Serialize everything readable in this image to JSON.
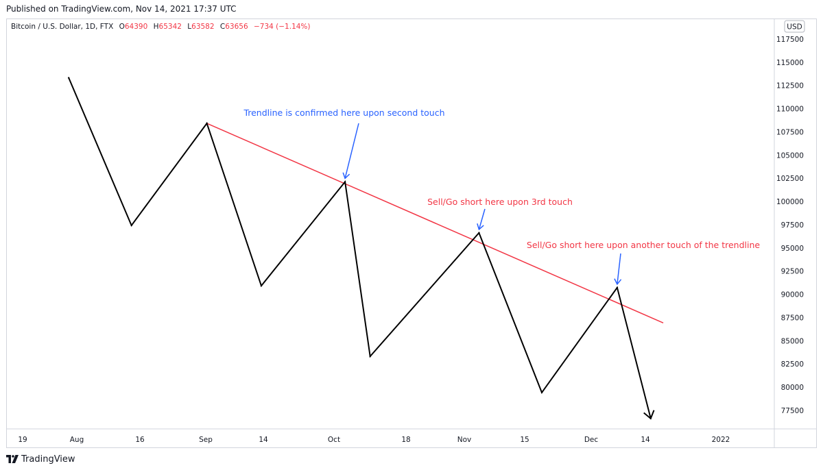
{
  "header": {
    "published": "Published on TradingView.com, Nov 14, 2021 17:37 UTC"
  },
  "legend": {
    "symbol": "Bitcoin / U.S. Dollar, 1D, FTX",
    "open_label": "O",
    "open": "64390",
    "high_label": "H",
    "high": "65342",
    "low_label": "L",
    "low": "63582",
    "close_label": "C",
    "close": "63656",
    "change": "−734 (−1.14%)"
  },
  "footer": {
    "brand": "TradingView"
  },
  "colors": {
    "price_line": "#000000",
    "trendline": "#f23645",
    "annotation_blue": "#2962ff",
    "annotation_red": "#f23645"
  },
  "chart_data": {
    "type": "line",
    "currency": "USD",
    "x_tick_labels": [
      "19",
      "Aug",
      "16",
      "Sep",
      "14",
      "Oct",
      "18",
      "Nov",
      "15",
      "Dec",
      "14",
      "2022"
    ],
    "y_tick_labels": [
      "117500",
      "115000",
      "112500",
      "110000",
      "107500",
      "105000",
      "102500",
      "100000",
      "97500",
      "95000",
      "92500",
      "90000",
      "87500",
      "85000",
      "82500",
      "80000",
      "77500"
    ],
    "ylim": [
      75500,
      119000
    ],
    "series": [
      {
        "role": "projected-price-path",
        "points": [
          {
            "x": "2021-07-30",
            "y": 113400
          },
          {
            "x": "2021-08-14",
            "y": 97500
          },
          {
            "x": "2021-09-01",
            "y": 108500
          },
          {
            "x": "2021-09-14",
            "y": 91000
          },
          {
            "x": "2021-10-04",
            "y": 102200
          },
          {
            "x": "2021-10-10",
            "y": 83400
          },
          {
            "x": "2021-11-05",
            "y": 96700
          },
          {
            "x": "2021-11-20",
            "y": 79500
          },
          {
            "x": "2021-12-08",
            "y": 90800
          },
          {
            "x": "2021-12-16",
            "y": 76700
          }
        ]
      }
    ],
    "trendline": {
      "start": {
        "x": "2021-09-01",
        "y": 108500
      },
      "end": {
        "x": "2021-12-19",
        "y": 87000
      }
    },
    "annotations": [
      {
        "text": "Trendline is confirmed here upon second touch",
        "color": "blue",
        "arrow_to": {
          "x": "2021-10-04",
          "y": 102200
        }
      },
      {
        "text": "Sell/Go short here upon 3rd touch",
        "color": "red",
        "arrow_to": {
          "x": "2021-11-05",
          "y": 96700
        }
      },
      {
        "text": "Sell/Go short here upon another touch of the trendline",
        "color": "red",
        "arrow_to": {
          "x": "2021-12-08",
          "y": 90800
        }
      }
    ],
    "grid": false
  }
}
